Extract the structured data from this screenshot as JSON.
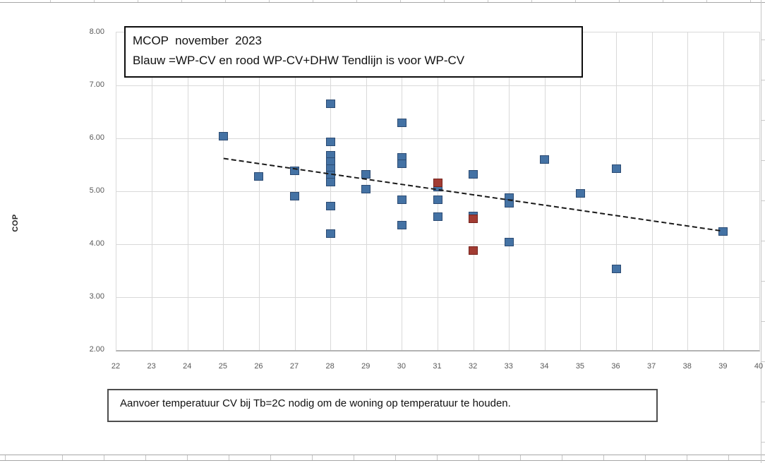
{
  "title_box": {
    "line1": "MCOP  november  2023",
    "line2": "Blauw =WP-CV en rood WP-CV+DHW Tendlijn is voor WP-CV"
  },
  "footer_box": {
    "text": "Aanvoer temperatuur CV bij Tb=2C nodig om de woning op temperatuur te houden."
  },
  "y_axis_title": "COP",
  "colors": {
    "blue_fill": "#4472a4",
    "blue_border": "#2c4b73",
    "red_fill": "#a23c33",
    "red_border": "#76231d",
    "gridline": "#d9d9d9",
    "axis_line": "#b3b3b3",
    "tick_label": "#595959",
    "trendline": "#1a1a1a"
  },
  "chart_data": {
    "type": "scatter",
    "title": "MCOP  november  2023",
    "subtitle": "Blauw =WP-CV en rood WP-CV+DHW Tendlijn is voor WP-CV",
    "xlabel": "Aanvoer temperatuur CV bij Tb=2C nodig om de woning op temperatuur te houden.",
    "ylabel": "COP",
    "xlim": [
      22,
      40
    ],
    "ylim": [
      2,
      8
    ],
    "grid": true,
    "legend": "none",
    "x_ticks": [
      22,
      23,
      24,
      25,
      26,
      27,
      28,
      29,
      30,
      31,
      32,
      33,
      34,
      35,
      36,
      37,
      38,
      39,
      40
    ],
    "x_tick_labels": [
      "22",
      "23",
      "24",
      "25",
      "26",
      "27",
      "28",
      "29",
      "30",
      "31",
      "32",
      "33",
      "34",
      "35",
      "36",
      "37",
      "38",
      "39",
      "40"
    ],
    "y_ticks": [
      8,
      7,
      6,
      5,
      4,
      3,
      2
    ],
    "y_tick_labels": [
      "8.00",
      "7.00",
      "6.00",
      "5.00",
      "4.00",
      "3.00",
      "2.00"
    ],
    "series": [
      {
        "name": "WP-CV",
        "marker": "square",
        "fill": "#4472a4",
        "border": "#2c4b73",
        "points": [
          [
            25,
            6.04
          ],
          [
            26,
            5.28
          ],
          [
            27,
            5.38
          ],
          [
            27,
            4.9
          ],
          [
            28,
            6.65
          ],
          [
            28,
            5.93
          ],
          [
            28,
            5.68
          ],
          [
            28,
            5.55
          ],
          [
            28,
            5.42
          ],
          [
            28,
            5.3
          ],
          [
            28,
            5.17
          ],
          [
            28,
            4.71
          ],
          [
            28,
            4.19
          ],
          [
            29,
            5.31
          ],
          [
            29,
            5.04
          ],
          [
            30,
            6.29
          ],
          [
            30,
            5.64
          ],
          [
            30,
            5.52
          ],
          [
            30,
            4.84
          ],
          [
            30,
            4.36
          ],
          [
            31,
            5.08
          ],
          [
            31,
            4.84
          ],
          [
            31,
            4.52
          ],
          [
            32,
            5.31
          ],
          [
            32,
            4.53
          ],
          [
            33,
            4.87
          ],
          [
            33,
            4.77
          ],
          [
            33,
            4.03
          ],
          [
            34,
            5.6
          ],
          [
            35,
            4.96
          ],
          [
            36,
            5.42
          ],
          [
            36,
            3.53
          ],
          [
            39,
            4.23
          ]
        ]
      },
      {
        "name": "WP-CV+DHW",
        "marker": "square",
        "fill": "#a23c33",
        "border": "#76231d",
        "points": [
          [
            31,
            5.16
          ],
          [
            32,
            4.48
          ],
          [
            32,
            3.88
          ]
        ]
      }
    ],
    "trendline": {
      "series": "WP-CV",
      "style": "dashed",
      "start": [
        25.0,
        5.62
      ],
      "end": [
        38.95,
        4.25
      ]
    }
  }
}
